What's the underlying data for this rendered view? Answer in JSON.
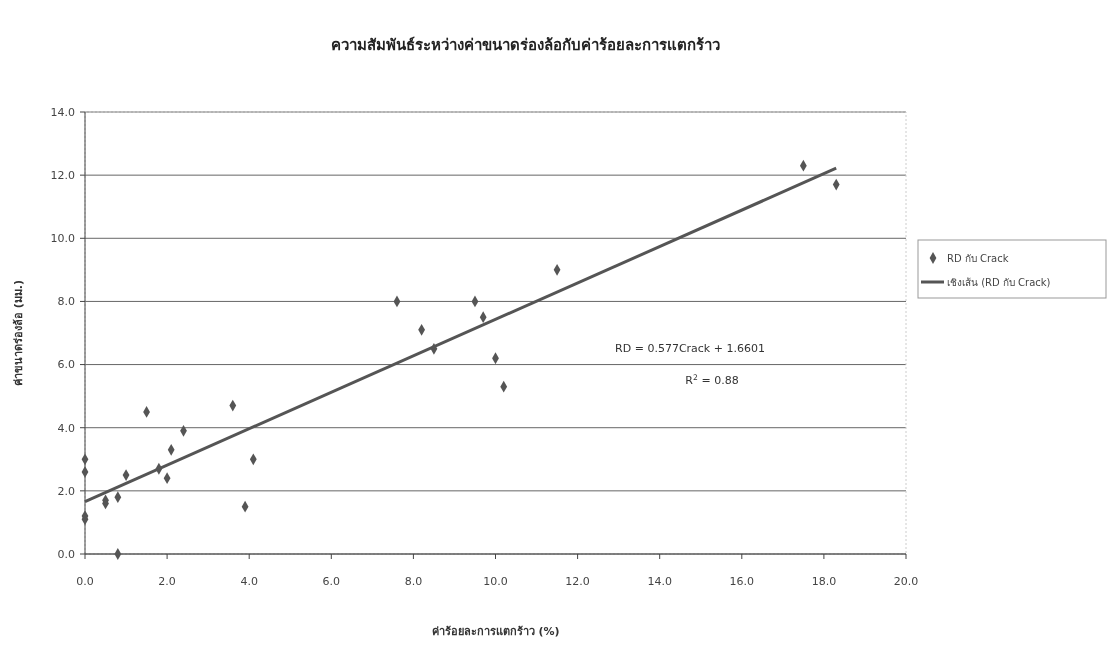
{
  "chart_data": {
    "type": "scatter",
    "title": "ความสัมพันธ์ระหว่างค่าขนาดร่องล้อกับค่าร้อยละการแตกร้าว",
    "xlabel": "ค่าร้อยละการแตกร้าว (%)",
    "ylabel": "ค่าขนาดร่องล้อ (มม.)",
    "xlim": [
      0,
      20
    ],
    "xticks": [
      {
        "value": 0,
        "label": "0.0"
      },
      {
        "value": 2,
        "label": "2.0"
      },
      {
        "value": 4,
        "label": "4.0"
      },
      {
        "value": 6,
        "label": "6.0"
      },
      {
        "value": 8,
        "label": "8.0"
      },
      {
        "value": 10,
        "label": "10.0"
      },
      {
        "value": 12,
        "label": "12.0"
      },
      {
        "value": 14,
        "label": "14.0"
      },
      {
        "value": 16,
        "label": "16.0"
      },
      {
        "value": 18,
        "label": "18.0"
      },
      {
        "value": 20,
        "label": "20.0"
      }
    ],
    "ylim": [
      0,
      14
    ],
    "yticks": [
      {
        "value": 0,
        "label": "0.0"
      },
      {
        "value": 2,
        "label": "2.0"
      },
      {
        "value": 4,
        "label": "4.0"
      },
      {
        "value": 6,
        "label": "6.0"
      },
      {
        "value": 8,
        "label": "8.0"
      },
      {
        "value": 10,
        "label": "10.0"
      },
      {
        "value": 12,
        "label": "12.0"
      },
      {
        "value": 14,
        "label": "14.0"
      }
    ],
    "grid": "y",
    "legend": "right",
    "series": [
      {
        "name": "RD กับ Crack",
        "marker": "diamond",
        "color": "#555555",
        "x": [
          0,
          0,
          0,
          0,
          0.5,
          0.5,
          0.8,
          0.8,
          1.0,
          1.5,
          1.8,
          2.0,
          2.1,
          2.4,
          3.6,
          3.9,
          4.1,
          7.6,
          8.2,
          8.5,
          9.5,
          9.7,
          10.0,
          10.2,
          11.5,
          17.5,
          18.3
        ],
        "values": [
          3.0,
          2.6,
          1.2,
          1.1,
          1.7,
          1.6,
          1.8,
          0.0,
          2.5,
          4.5,
          2.7,
          2.4,
          3.3,
          3.9,
          4.7,
          1.5,
          3.0,
          8.0,
          7.1,
          6.5,
          8.0,
          7.5,
          6.2,
          5.3,
          9.0,
          12.3,
          11.7
        ]
      },
      {
        "name": "เชิงเส้น (RD กับ Crack)",
        "type": "line",
        "color": "#555555",
        "x": [
          0,
          18.3
        ],
        "values": [
          1.66,
          12.22
        ]
      }
    ],
    "annotations": [
      "RD = 0.577Crack + 1.6601",
      "R$^{2}$ = 0.88"
    ]
  }
}
